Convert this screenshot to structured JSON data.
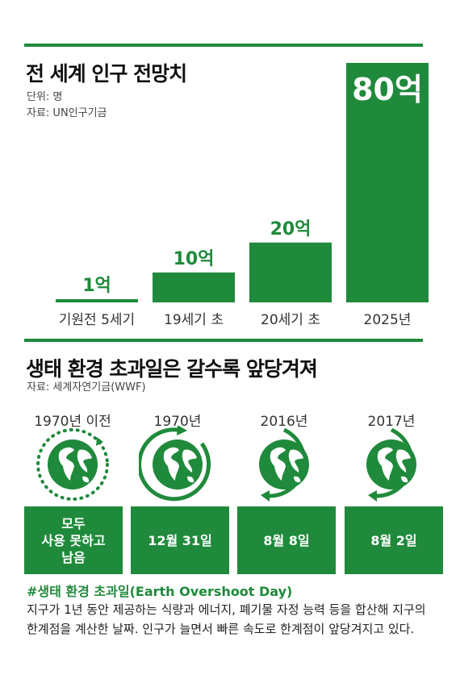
{
  "colors": {
    "accent": "#1f8a3b",
    "text": "#222222"
  },
  "population": {
    "title": "전 세계 인구 전망치",
    "unit": "단위: 명",
    "source": "자료: UN인구기금"
  },
  "chart_data": {
    "type": "bar",
    "title": "전 세계 인구 전망치",
    "categories": [
      "기원전 5세기",
      "19세기 초",
      "20세기 초",
      "2025년"
    ],
    "values": [
      1,
      10,
      20,
      80
    ],
    "value_labels": [
      "1억",
      "10억",
      "20억",
      "80억"
    ],
    "unit": "억 명",
    "ylim": [
      0,
      80
    ],
    "xlabel": "",
    "ylabel": "",
    "grid": false
  },
  "overshoot": {
    "title": "생태 환경 초과일은 갈수록 앞당겨져",
    "source": "자료: 세계자연기금(WWF)",
    "items": [
      {
        "year": "1970년 이전",
        "label": "모두\n사용 못하고\n남음",
        "icon": "globe-dotted-cycle-icon"
      },
      {
        "year": "1970년",
        "label": "12월 31일",
        "icon": "globe-full-cycle-icon"
      },
      {
        "year": "2016년",
        "label": "8월 8일",
        "icon": "globe-partial-cycle-icon"
      },
      {
        "year": "2017년",
        "label": "8월 2일",
        "icon": "globe-partial-cycle-icon"
      }
    ]
  },
  "note": {
    "title": "#생태 환경 초과일(Earth Overshoot Day)",
    "body": "지구가 1년 동안 제공하는 식량과 에너지, 폐기물 자정 능력 등을 합산해 지구의 한계점을 계산한 날짜. 인구가 늘면서 빠른 속도로 한계점이 앞당겨지고 있다."
  }
}
